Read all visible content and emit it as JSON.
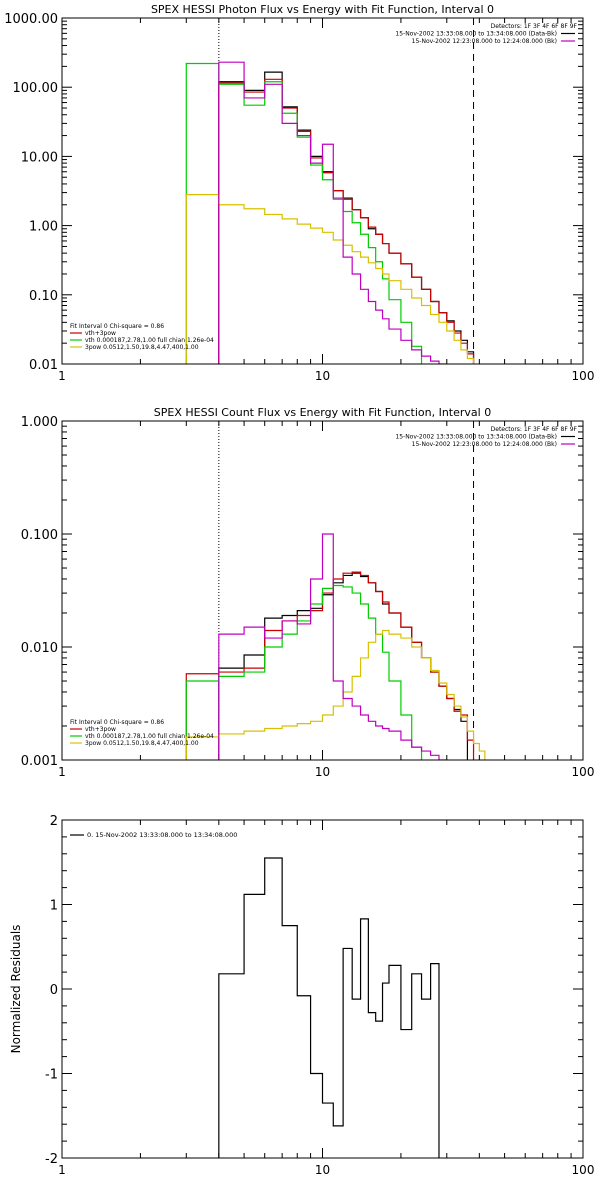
{
  "chart_data": [
    {
      "type": "line",
      "title": "SPEX HESSI Photon Flux vs Energy with Fit Function, Interval 0",
      "xlabel": "",
      "ylabel": "",
      "xscale": "log",
      "yscale": "log",
      "xlim": [
        1,
        100
      ],
      "ylim": [
        0.01,
        1000
      ],
      "x_ticks": [
        1,
        10,
        100
      ],
      "x_tick_labels": [
        "1",
        "10",
        "100"
      ],
      "y_ticks": [
        0.01,
        0.1,
        1,
        10,
        100,
        1000
      ],
      "y_tick_labels": [
        "0.01",
        "0.10",
        "1.00",
        "10.00",
        "100.00",
        "1000.00"
      ],
      "vlines": [
        {
          "x": 4,
          "style": "dotted"
        },
        {
          "x": 38,
          "style": "dashed"
        }
      ],
      "legend_tr": [
        "Detectors: 1F 3F 4F 6F 8F 9F",
        "15-Nov-2002 13:33:08.000 to 13:34:08.000 (Data-Bk)",
        "15-Nov-2002 12:23:08.000 to 12:24:08.000 (Bk)"
      ],
      "legend_tr_colors": [
        null,
        "#000000",
        "#c000c0"
      ],
      "legend_bl": [
        "Fit Interval  0    Chi-square = 0.86",
        "vth+3pow",
        "vth 0.000187,2.78,1.00   full chian 1.26e-04",
        "3pow 0.0512,1.50,19.8,4.47,400,1.00"
      ],
      "legend_bl_colors": [
        null,
        "#cc0000",
        "#00cc00",
        "#d8c000"
      ],
      "edges": [
        3,
        4,
        5,
        6,
        7,
        8,
        9,
        10,
        11,
        12,
        13,
        14,
        15,
        16,
        17,
        18,
        20,
        22,
        24,
        26,
        28,
        30,
        32,
        34,
        36,
        38,
        40,
        42
      ],
      "series": [
        {
          "color": "#000000",
          "values": [
            null,
            120,
            90,
            165,
            52,
            24,
            10,
            6.0,
            3.2,
            2.5,
            1.7,
            1.3,
            0.9,
            0.75,
            0.55,
            0.4,
            0.28,
            0.18,
            0.12,
            0.08,
            0.055,
            0.042,
            0.03,
            0.022,
            0.015,
            null,
            null
          ]
        },
        {
          "color": "#cc0000",
          "values": [
            null,
            115,
            85,
            130,
            50,
            23,
            9.5,
            5.8,
            3.2,
            2.4,
            1.7,
            1.3,
            0.95,
            0.75,
            0.55,
            0.4,
            0.28,
            0.18,
            0.12,
            0.08,
            0.055,
            0.04,
            0.028,
            0.02,
            0.014,
            null,
            null
          ]
        },
        {
          "color": "#00cc00",
          "values": [
            220,
            110,
            55,
            120,
            42,
            19,
            7.5,
            4.6,
            2.4,
            1.6,
            1.1,
            0.75,
            0.48,
            0.3,
            0.17,
            0.085,
            0.04,
            0.018,
            0.008,
            null,
            null,
            null,
            null,
            null,
            null,
            null,
            null
          ]
        },
        {
          "color": "#d8c000",
          "values": [
            2.8,
            2.0,
            1.75,
            1.45,
            1.25,
            1.05,
            0.92,
            0.8,
            0.62,
            0.52,
            0.42,
            0.35,
            0.29,
            0.24,
            0.2,
            0.16,
            0.12,
            0.09,
            0.07,
            0.052,
            0.04,
            0.03,
            0.022,
            0.016,
            0.012,
            0.009,
            null
          ]
        },
        {
          "color": "#c000c0",
          "values": [
            null,
            230,
            70,
            110,
            30,
            20,
            8.0,
            15,
            2.5,
            0.35,
            0.2,
            0.12,
            0.08,
            0.06,
            0.045,
            0.032,
            0.022,
            0.016,
            0.013,
            0.011,
            0.01,
            0.008,
            null,
            null,
            null,
            null,
            null
          ]
        }
      ]
    },
    {
      "type": "line",
      "title": "SPEX HESSI Count Flux vs Energy with Fit Function, Interval 0",
      "xlabel": "",
      "ylabel": "",
      "xscale": "log",
      "yscale": "log",
      "xlim": [
        1,
        100
      ],
      "ylim": [
        0.001,
        1
      ],
      "x_ticks": [
        1,
        10,
        100
      ],
      "x_tick_labels": [
        "1",
        "10",
        "100"
      ],
      "y_ticks": [
        0.001,
        0.01,
        0.1,
        1
      ],
      "y_tick_labels": [
        "0.001",
        "0.010",
        "0.100",
        "1.000"
      ],
      "vlines": [
        {
          "x": 4,
          "style": "dotted"
        },
        {
          "x": 38,
          "style": "dashed"
        }
      ],
      "legend_tr": [
        "Detectors: 1F 3F 4F 6F 8F 9F",
        "15-Nov-2002 13:33:08.000 to 13:34:08.000 (Data-Bk)",
        "15-Nov-2002 12:23:08.000 to 12:24:08.000 (Bk)"
      ],
      "legend_tr_colors": [
        null,
        "#000000",
        "#c000c0"
      ],
      "legend_bl": [
        "Fit Interval  0    Chi-square = 0.86",
        "vth+3pow",
        "vth 0.000187,2.78,1.00   full chian 1.26e-04",
        "3pow 0.0512,1.50,19.8,4.47,400,1.00"
      ],
      "legend_bl_colors": [
        null,
        "#cc0000",
        "#00cc00",
        "#d8c000"
      ],
      "edges": [
        3,
        4,
        5,
        6,
        7,
        8,
        9,
        10,
        11,
        12,
        13,
        14,
        15,
        16,
        17,
        18,
        20,
        22,
        24,
        26,
        28,
        30,
        32,
        34,
        36,
        38,
        40,
        42
      ],
      "series": [
        {
          "color": "#000000",
          "values": [
            null,
            0.0065,
            0.0085,
            0.018,
            0.019,
            0.021,
            0.022,
            0.029,
            0.037,
            0.043,
            0.045,
            0.042,
            0.037,
            0.031,
            0.024,
            0.02,
            0.015,
            0.011,
            0.008,
            0.006,
            0.0045,
            0.0035,
            0.0028,
            0.0022,
            null,
            null,
            null
          ]
        },
        {
          "color": "#cc0000",
          "values": [
            0.0058,
            0.006,
            0.0065,
            0.014,
            0.017,
            0.019,
            0.021,
            0.03,
            0.04,
            0.045,
            0.046,
            0.043,
            0.037,
            0.031,
            0.025,
            0.02,
            0.015,
            0.011,
            0.008,
            0.006,
            0.0045,
            0.0035,
            0.0027,
            0.0025,
            0.0015,
            null,
            null
          ]
        },
        {
          "color": "#00cc00",
          "values": [
            0.005,
            0.0055,
            0.006,
            0.01,
            0.013,
            0.017,
            0.024,
            0.033,
            0.035,
            0.034,
            0.03,
            0.024,
            0.018,
            0.013,
            0.009,
            0.005,
            0.0025,
            0.0013,
            null,
            null,
            null,
            null,
            null,
            null,
            null,
            null,
            null
          ]
        },
        {
          "color": "#d8c000",
          "values": [
            0.0016,
            0.0017,
            0.0018,
            0.0019,
            0.002,
            0.0021,
            0.0022,
            0.0025,
            0.003,
            0.004,
            0.0055,
            0.008,
            0.011,
            0.013,
            0.014,
            0.013,
            0.012,
            0.01,
            0.008,
            0.0062,
            0.0048,
            0.0038,
            0.003,
            0.0024,
            0.0018,
            0.0014,
            0.0012
          ]
        },
        {
          "color": "#c000c0",
          "values": [
            null,
            0.013,
            0.015,
            0.012,
            0.017,
            0.016,
            0.04,
            0.1,
            0.005,
            0.0035,
            0.003,
            0.0025,
            0.0022,
            0.002,
            0.0019,
            0.0018,
            0.0015,
            0.0013,
            0.0012,
            0.0011,
            0.001,
            null,
            null,
            null,
            null,
            null,
            null
          ]
        }
      ]
    },
    {
      "type": "line",
      "title": "",
      "xlabel": "",
      "ylabel": "Normalized Residuals",
      "xscale": "log",
      "yscale": "linear",
      "xlim": [
        1,
        100
      ],
      "ylim": [
        -2,
        2
      ],
      "x_ticks": [
        1,
        10,
        100
      ],
      "x_tick_labels": [
        "1",
        "10",
        "100"
      ],
      "y_ticks": [
        -2,
        -1,
        0,
        1,
        2
      ],
      "y_tick_labels": [
        "-2",
        "-1",
        "0",
        "1",
        "2"
      ],
      "legend": [
        "0. 15-Nov-2002 13:33:08.000 to 13:34:08.000"
      ],
      "edges": [
        4,
        5,
        6,
        7,
        8,
        9,
        10,
        11,
        12,
        13,
        14,
        15,
        16,
        17,
        18,
        20,
        22,
        24,
        26,
        28,
        30,
        32,
        34,
        36,
        38
      ],
      "series": [
        {
          "color": "#000000",
          "values": [
            0.18,
            1.12,
            1.55,
            0.75,
            -0.08,
            -1.0,
            -1.35,
            -1.62,
            0.48,
            -0.12,
            0.83,
            -0.28,
            -0.38,
            0.07,
            0.28,
            -0.48,
            0.18,
            -0.12,
            0.3,
            null,
            null,
            null,
            null,
            null
          ]
        }
      ]
    }
  ]
}
